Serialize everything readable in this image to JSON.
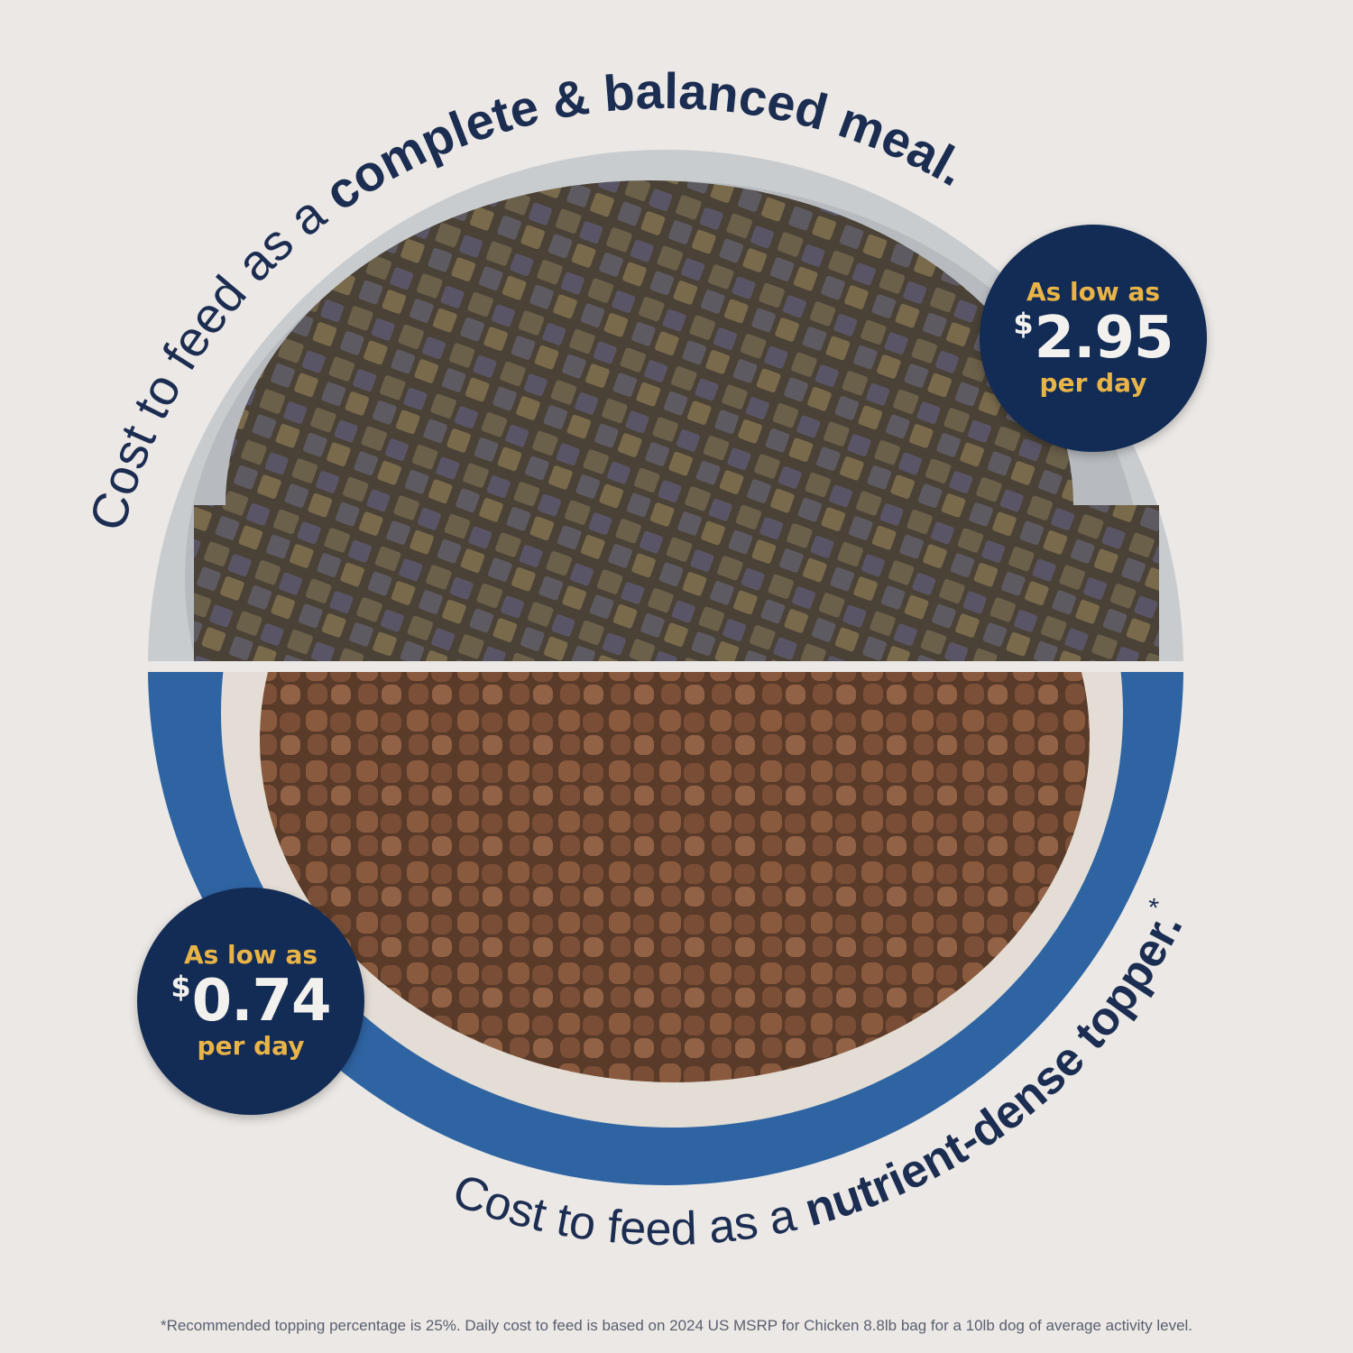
{
  "top_caption": {
    "regular": "Cost to feed as a ",
    "bold": "complete & balanced meal."
  },
  "bottom_caption": {
    "regular": "Cost to feed as a ",
    "bold": "nutrient-dense topper.",
    "mark": "*"
  },
  "badge_meal": {
    "line1": "As low as",
    "currency": "$",
    "price": "2.95",
    "line3": "per day"
  },
  "badge_topper": {
    "line1": "As low as",
    "currency": "$",
    "price": "0.74",
    "line3": "per day"
  },
  "footnote": "*Recommended topping percentage is 25%. Daily cost to feed is based on 2024 US MSRP for Chicken 8.8lb bag for a 10lb dog of average activity level.",
  "colors": {
    "navy": "#132c55",
    "gold": "#e9b447",
    "bowl_blue": "#2f64a3",
    "background": "#ebe8e5"
  }
}
